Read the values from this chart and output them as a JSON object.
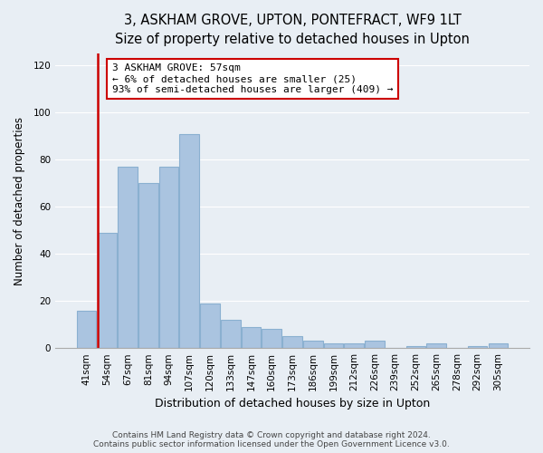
{
  "title": "3, ASKHAM GROVE, UPTON, PONTEFRACT, WF9 1LT",
  "subtitle": "Size of property relative to detached houses in Upton",
  "xlabel": "Distribution of detached houses by size in Upton",
  "ylabel": "Number of detached properties",
  "categories": [
    "41sqm",
    "54sqm",
    "67sqm",
    "81sqm",
    "94sqm",
    "107sqm",
    "120sqm",
    "133sqm",
    "147sqm",
    "160sqm",
    "173sqm",
    "186sqm",
    "199sqm",
    "212sqm",
    "226sqm",
    "239sqm",
    "252sqm",
    "265sqm",
    "278sqm",
    "292sqm",
    "305sqm"
  ],
  "values": [
    16,
    49,
    77,
    70,
    77,
    91,
    19,
    12,
    9,
    8,
    5,
    3,
    2,
    2,
    3,
    0,
    1,
    2,
    0,
    1,
    2
  ],
  "bar_color": "#aac4e0",
  "bar_edge_color": "#8ab0d0",
  "red_line_index": 1,
  "ylim": [
    0,
    125
  ],
  "yticks": [
    0,
    20,
    40,
    60,
    80,
    100,
    120
  ],
  "annotation_text": "3 ASKHAM GROVE: 57sqm\n← 6% of detached houses are smaller (25)\n93% of semi-detached houses are larger (409) →",
  "annotation_box_facecolor": "#ffffff",
  "annotation_box_edgecolor": "#cc0000",
  "red_line_color": "#cc0000",
  "footer_line1": "Contains HM Land Registry data © Crown copyright and database right 2024.",
  "footer_line2": "Contains public sector information licensed under the Open Government Licence v3.0.",
  "fig_facecolor": "#e8eef4",
  "plot_facecolor": "#e8eef4",
  "grid_color": "#ffffff",
  "title_fontsize": 10.5,
  "subtitle_fontsize": 9.5,
  "xlabel_fontsize": 9,
  "ylabel_fontsize": 8.5,
  "tick_fontsize": 7.5,
  "annotation_fontsize": 8,
  "footer_fontsize": 6.5
}
